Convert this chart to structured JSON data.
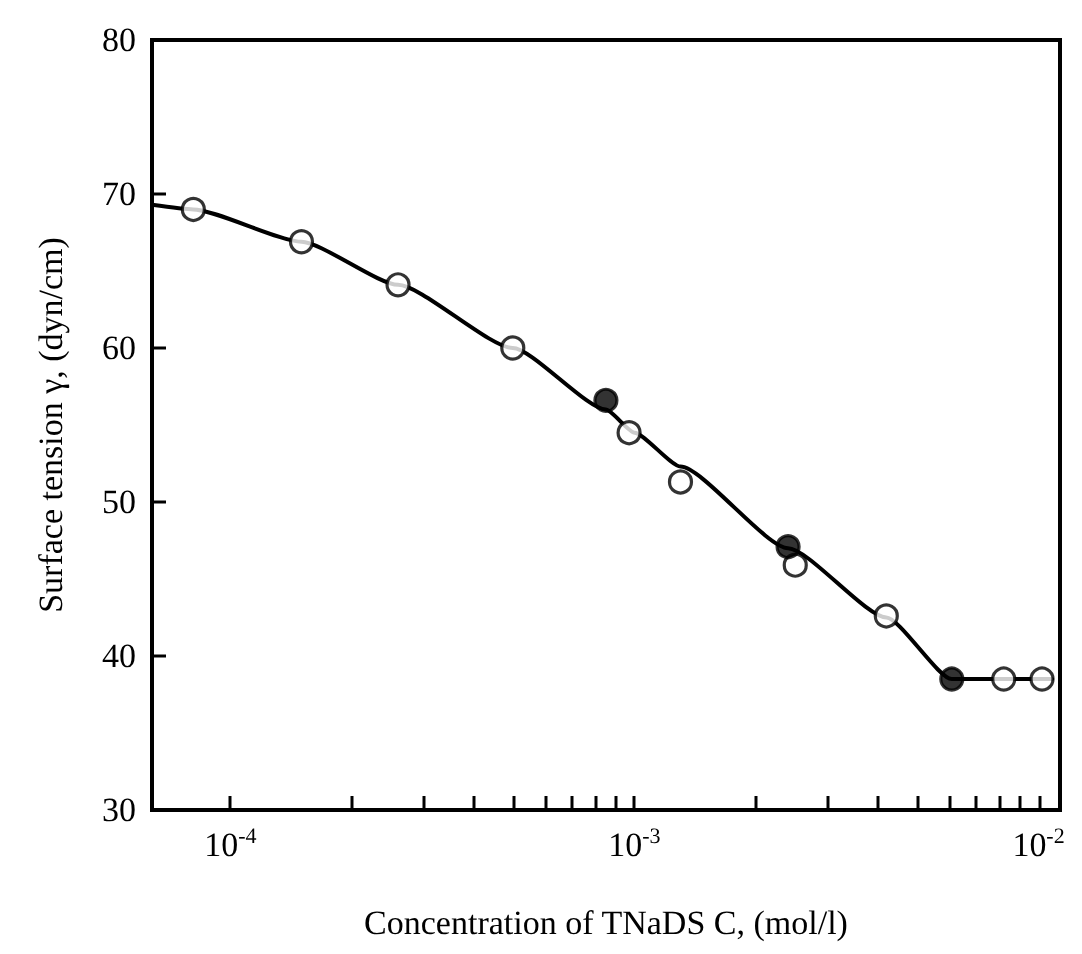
{
  "chart_data": {
    "type": "scatter",
    "xlabel": "Concentration of TNaDS C, (mol/l)",
    "ylabel": "Surface tension γ, (dyn/cm)",
    "log": "x",
    "xlim": [
      6.4e-05,
      0.0113
    ],
    "xticks": [
      {
        "value": 0.0001,
        "label": "10$^{-4}$"
      },
      {
        "value": 0.0002,
        "label": null
      },
      {
        "value": 0.0003,
        "label": null
      },
      {
        "value": 0.0004,
        "label": null
      },
      {
        "value": 0.0005,
        "label": null
      },
      {
        "value": 0.0006,
        "label": null
      },
      {
        "value": 0.0007,
        "label": null
      },
      {
        "value": 0.0008,
        "label": null
      },
      {
        "value": 0.0009,
        "label": null
      },
      {
        "value": 0.001,
        "label": "10$^{-3}$"
      },
      {
        "value": 0.002,
        "label": null
      },
      {
        "value": 0.003,
        "label": null
      },
      {
        "value": 0.004,
        "label": null
      },
      {
        "value": 0.005,
        "label": null
      },
      {
        "value": 0.006,
        "label": null
      },
      {
        "value": 0.007,
        "label": null
      },
      {
        "value": 0.008,
        "label": null
      },
      {
        "value": 0.009,
        "label": null
      },
      {
        "value": 0.01,
        "label": "10$^{-2}$"
      }
    ],
    "ylim": [
      30,
      80
    ],
    "yticks": [
      30,
      40,
      50,
      60,
      70,
      80
    ],
    "marker": "circle",
    "series": [
      {
        "type": "line",
        "color": "#000000",
        "marker": "none",
        "line_style": "solid",
        "x": [
          6.4e-05,
          8.1e-05,
          0.00015,
          0.00026,
          0.0005,
          0.00085,
          0.001,
          0.0013,
          0.0024,
          0.0042,
          0.0061,
          0.0108
        ],
        "values": [
          69.3,
          69.0,
          66.9,
          64.1,
          60.0,
          56.0,
          54.5,
          52.3,
          47.0,
          42.5,
          38.5,
          38.5
        ]
      },
      {
        "color": "#ffffff",
        "x": [
          8.1e-05,
          0.00015,
          0.00026,
          0.0005,
          0.00097,
          0.0013,
          0.0025,
          0.0042,
          0.0082,
          0.0102
        ],
        "values": [
          69.0,
          66.9,
          64.1,
          60.0,
          54.5,
          51.3,
          45.9,
          42.6,
          38.5,
          38.5
        ]
      },
      {
        "color": "#000000",
        "x": [
          0.00085,
          0.0024,
          0.0061
        ],
        "values": [
          56.6,
          47.1,
          38.5
        ]
      }
    ]
  }
}
